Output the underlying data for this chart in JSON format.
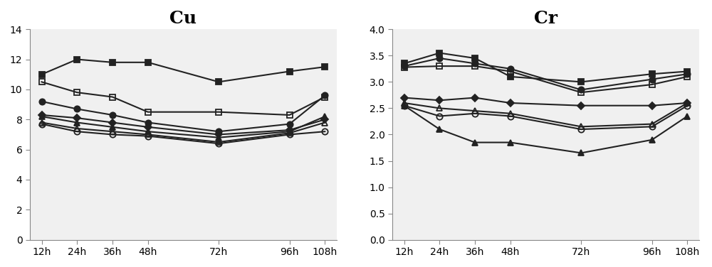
{
  "x_labels": [
    "12h",
    "24h",
    "36h",
    "48h",
    "72h",
    "96h",
    "108h"
  ],
  "x_values": [
    12,
    24,
    36,
    48,
    72,
    96,
    108
  ],
  "Cu": {
    "title": "Cu",
    "ylim": [
      0,
      14
    ],
    "yticks": [
      0,
      2,
      4,
      6,
      8,
      10,
      12,
      14
    ],
    "series": [
      {
        "values": [
          11.0,
          12.0,
          11.8,
          11.8,
          10.5,
          11.2,
          11.5
        ],
        "marker": "s",
        "fillstyle": "full",
        "markersize": 6
      },
      {
        "values": [
          10.5,
          9.8,
          9.5,
          8.5,
          8.5,
          8.3,
          9.5
        ],
        "marker": "s",
        "fillstyle": "none",
        "markersize": 6
      },
      {
        "values": [
          9.2,
          8.7,
          8.3,
          7.8,
          7.2,
          7.7,
          9.6
        ],
        "marker": "o",
        "fillstyle": "full",
        "markersize": 6
      },
      {
        "values": [
          8.3,
          8.1,
          7.8,
          7.5,
          7.0,
          7.3,
          8.0
        ],
        "marker": "D",
        "fillstyle": "full",
        "markersize": 5
      },
      {
        "values": [
          8.2,
          7.8,
          7.5,
          7.2,
          6.8,
          7.2,
          8.2
        ],
        "marker": "^",
        "fillstyle": "full",
        "markersize": 6
      },
      {
        "values": [
          7.8,
          7.4,
          7.2,
          7.0,
          6.5,
          7.1,
          7.8
        ],
        "marker": "^",
        "fillstyle": "none",
        "markersize": 6
      },
      {
        "values": [
          7.7,
          7.2,
          7.0,
          6.9,
          6.4,
          7.0,
          7.2
        ],
        "marker": "o",
        "fillstyle": "none",
        "markersize": 6
      }
    ]
  },
  "Cr": {
    "title": "Cr",
    "ylim": [
      0.0,
      4.0
    ],
    "yticks": [
      0.0,
      0.5,
      1.0,
      1.5,
      2.0,
      2.5,
      3.0,
      3.5,
      4.0
    ],
    "series": [
      {
        "values": [
          3.35,
          3.55,
          3.45,
          3.1,
          3.0,
          3.15,
          3.2
        ],
        "marker": "s",
        "fillstyle": "full",
        "markersize": 6
      },
      {
        "values": [
          3.3,
          3.45,
          3.35,
          3.25,
          2.85,
          3.05,
          3.15
        ],
        "marker": "o",
        "fillstyle": "full",
        "markersize": 6
      },
      {
        "values": [
          3.28,
          3.3,
          3.3,
          3.2,
          2.8,
          2.95,
          3.1
        ],
        "marker": "s",
        "fillstyle": "none",
        "markersize": 6
      },
      {
        "values": [
          2.7,
          2.65,
          2.7,
          2.6,
          2.55,
          2.55,
          2.6
        ],
        "marker": "D",
        "fillstyle": "full",
        "markersize": 5
      },
      {
        "values": [
          2.6,
          2.5,
          2.45,
          2.4,
          2.15,
          2.2,
          2.6
        ],
        "marker": "^",
        "fillstyle": "none",
        "markersize": 6
      },
      {
        "values": [
          2.55,
          2.35,
          2.4,
          2.35,
          2.1,
          2.15,
          2.55
        ],
        "marker": "o",
        "fillstyle": "none",
        "markersize": 6
      },
      {
        "values": [
          2.55,
          2.1,
          1.85,
          1.85,
          1.65,
          1.9,
          2.35
        ],
        "marker": "^",
        "fillstyle": "full",
        "markersize": 6
      }
    ]
  },
  "line_color": "#222222",
  "linewidth": 1.5,
  "figure_facecolor": "#ffffff",
  "axes_facecolor": "#f0f0f0",
  "title_fontsize": 18,
  "tick_fontsize": 10,
  "figsize": [
    10.0,
    3.76
  ],
  "dpi": 100
}
